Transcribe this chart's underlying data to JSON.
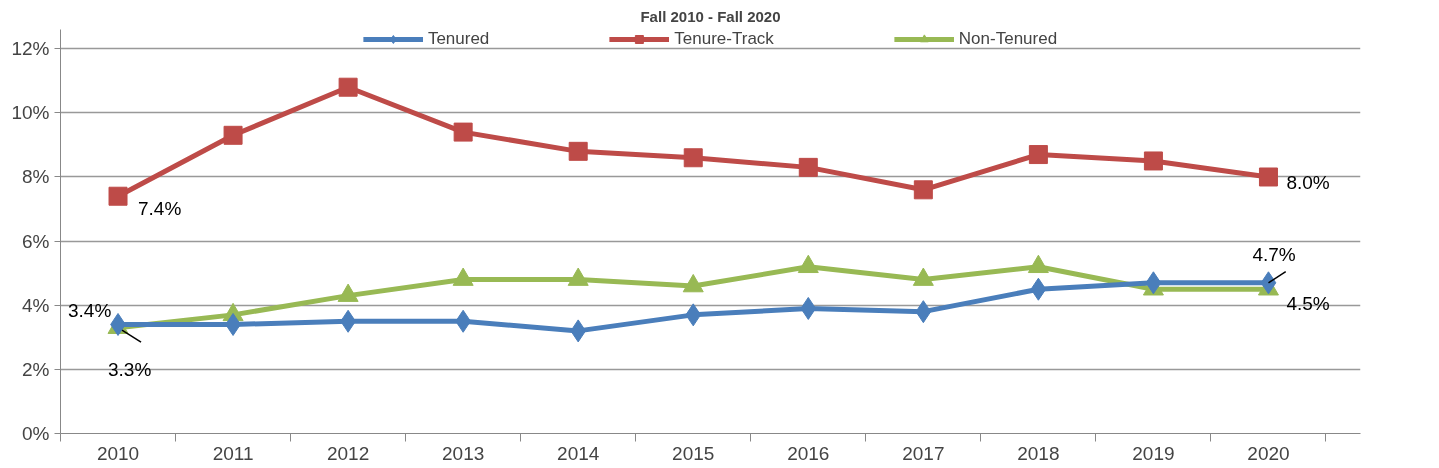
{
  "chart_data": {
    "type": "line",
    "title": "Fall 2010 - Fall 2020",
    "categories": [
      "2010",
      "2011",
      "2012",
      "2013",
      "2014",
      "2015",
      "2016",
      "2017",
      "2018",
      "2019",
      "2020"
    ],
    "series": [
      {
        "name": "Tenured",
        "color": "#4a7ebb",
        "marker": "diamond",
        "values": [
          3.4,
          3.4,
          3.5,
          3.5,
          3.2,
          3.7,
          3.9,
          3.8,
          4.5,
          4.7,
          4.7
        ],
        "value_labels": [
          "3.4%",
          null,
          null,
          null,
          null,
          null,
          null,
          null,
          null,
          null,
          "4.7%"
        ]
      },
      {
        "name": "Tenure-Track",
        "color": "#be4b48",
        "marker": "square",
        "values": [
          7.4,
          9.3,
          10.8,
          9.4,
          8.8,
          8.6,
          8.3,
          7.6,
          8.7,
          8.5,
          8.0
        ],
        "value_labels": [
          "7.4%",
          null,
          null,
          null,
          null,
          null,
          null,
          null,
          null,
          null,
          "8.0%"
        ]
      },
      {
        "name": "Non-Tenured",
        "color": "#98b954",
        "marker": "triangle",
        "values": [
          3.3,
          3.7,
          4.3,
          4.8,
          4.8,
          4.6,
          5.2,
          4.8,
          5.2,
          4.5,
          4.5
        ],
        "value_labels": [
          "3.3%",
          null,
          null,
          null,
          null,
          null,
          null,
          null,
          null,
          null,
          "4.5%"
        ]
      }
    ],
    "ylim": [
      0,
      12.6
    ],
    "yticks": [
      {
        "value": 0,
        "label": "0%"
      },
      {
        "value": 2,
        "label": "2%"
      },
      {
        "value": 4,
        "label": "4%"
      },
      {
        "value": 6,
        "label": "6%"
      },
      {
        "value": 8,
        "label": "8%"
      },
      {
        "value": 10,
        "label": "10%"
      },
      {
        "value": 12,
        "label": "12%"
      }
    ],
    "grid": "y",
    "legend": "top",
    "line_style": "solid"
  }
}
